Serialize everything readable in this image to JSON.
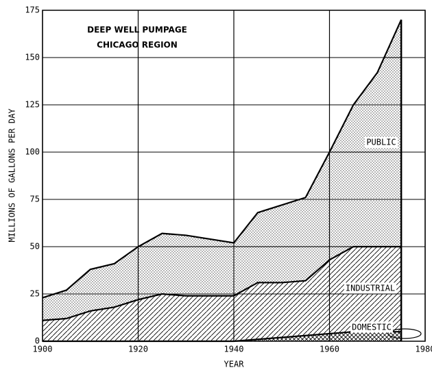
{
  "chart_data": {
    "type": "stacked_area",
    "title": "DEEP WELL PUMPAGE",
    "subtitle": "CHICAGO REGION",
    "x_label": "YEAR",
    "y_label": "MILLIONS OF GALLONS PER DAY",
    "x": [
      1900,
      1905,
      1910,
      1915,
      1920,
      1925,
      1930,
      1935,
      1940,
      1945,
      1950,
      1955,
      1960,
      1965,
      1970,
      1975
    ],
    "series": [
      {
        "name": "DOMESTIC",
        "color": "#000000",
        "values": [
          0,
          0,
          0,
          0,
          0,
          0,
          0,
          0,
          0,
          1,
          2,
          3,
          4,
          5,
          5,
          5
        ]
      },
      {
        "name": "INDUSTRIAL",
        "color": "#000000",
        "values": [
          11,
          12,
          16,
          18,
          22,
          25,
          24,
          24,
          24,
          30,
          29,
          29,
          39,
          45,
          45,
          45
        ]
      },
      {
        "name": "PUBLIC",
        "color": "#000000",
        "values": [
          12,
          15,
          22,
          23,
          28,
          32,
          32,
          30,
          28,
          37,
          41,
          44,
          57,
          75,
          92,
          120
        ]
      }
    ],
    "xlim": [
      1900,
      1980
    ],
    "xticks": [
      1900,
      1920,
      1940,
      1960,
      1980
    ],
    "ylim": [
      0,
      175
    ],
    "yticks": [
      0,
      25,
      50,
      75,
      100,
      125,
      150,
      175
    ],
    "grid": true
  }
}
